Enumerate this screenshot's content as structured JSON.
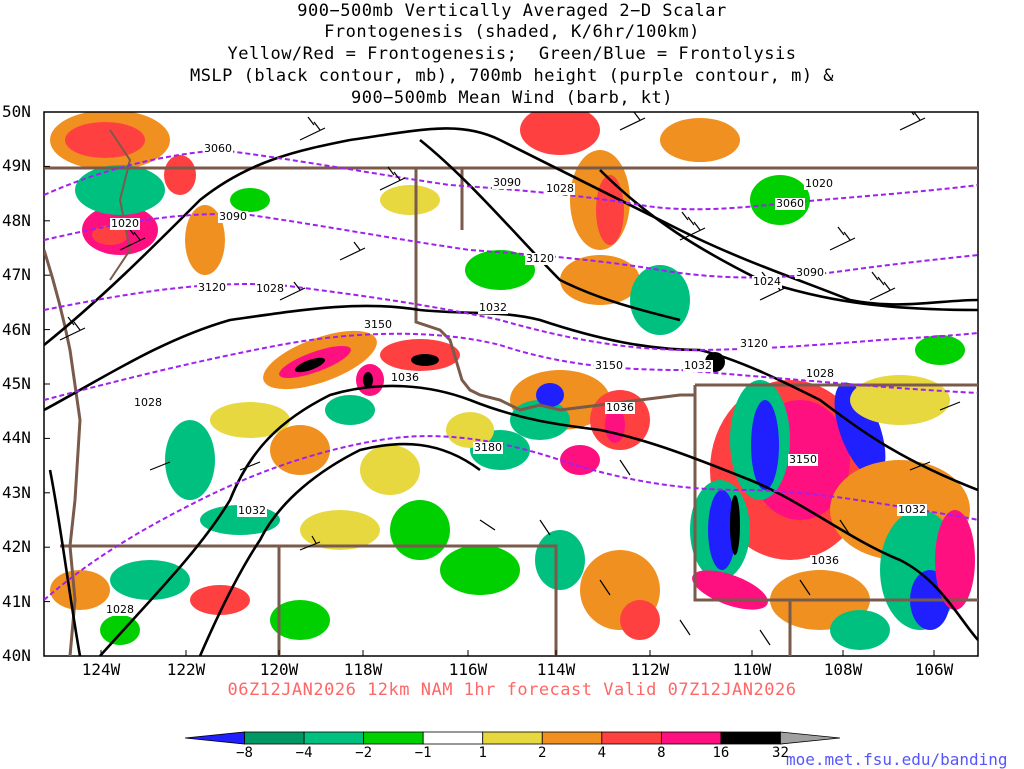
{
  "title_lines": [
    "900−500mb Vertically Averaged 2−D Scalar",
    "Frontogenesis (shaded, K/6hr/100km)",
    "Yellow/Red = Frontogenesis;  Green/Blue = Frontolysis",
    "MSLP (black contour, mb), 700mb height (purple contour, m) &",
    "900−500mb Mean Wind (barb, kt)"
  ],
  "footer": "06Z12JAN2026 12km NAM 1hr forecast Valid 07Z12JAN2026",
  "credit": "moe.met.fsu.edu/banding",
  "lat_labels": [
    "50N",
    "49N",
    "48N",
    "47N",
    "46N",
    "45N",
    "44N",
    "43N",
    "42N",
    "41N",
    "40N"
  ],
  "lon_labels": [
    "124W",
    "122W",
    "120W",
    "118W",
    "116W",
    "114W",
    "112W",
    "110W",
    "108W",
    "106W"
  ],
  "colorbar": {
    "labels": [
      "−8",
      "−4",
      "−2",
      "−1",
      "1",
      "2",
      "4",
      "8",
      "16",
      "32"
    ],
    "colors": [
      "#2020ff",
      "#009966",
      "#00c080",
      "#00d000",
      "#ffffff",
      "#e8d840",
      "#f09020",
      "#ff4040",
      "#ff1080",
      "#000000",
      "#a0a0a0"
    ]
  },
  "pressure_labels": [
    "1020",
    "1028",
    "1028",
    "1032",
    "1036",
    "1036",
    "1032",
    "1024",
    "1020",
    "1028",
    "1032",
    "1036",
    "1028",
    "1028",
    "1032"
  ],
  "height_labels": [
    "3060",
    "3090",
    "3090",
    "3120",
    "3150",
    "3120",
    "3150",
    "3180",
    "3150",
    "3060",
    "3090",
    "3120"
  ],
  "colors": {
    "footer": "#ff6666",
    "credit": "#5555ff",
    "pressure": "#000000",
    "height": "#a020f0",
    "border": "#7a5a4a"
  }
}
